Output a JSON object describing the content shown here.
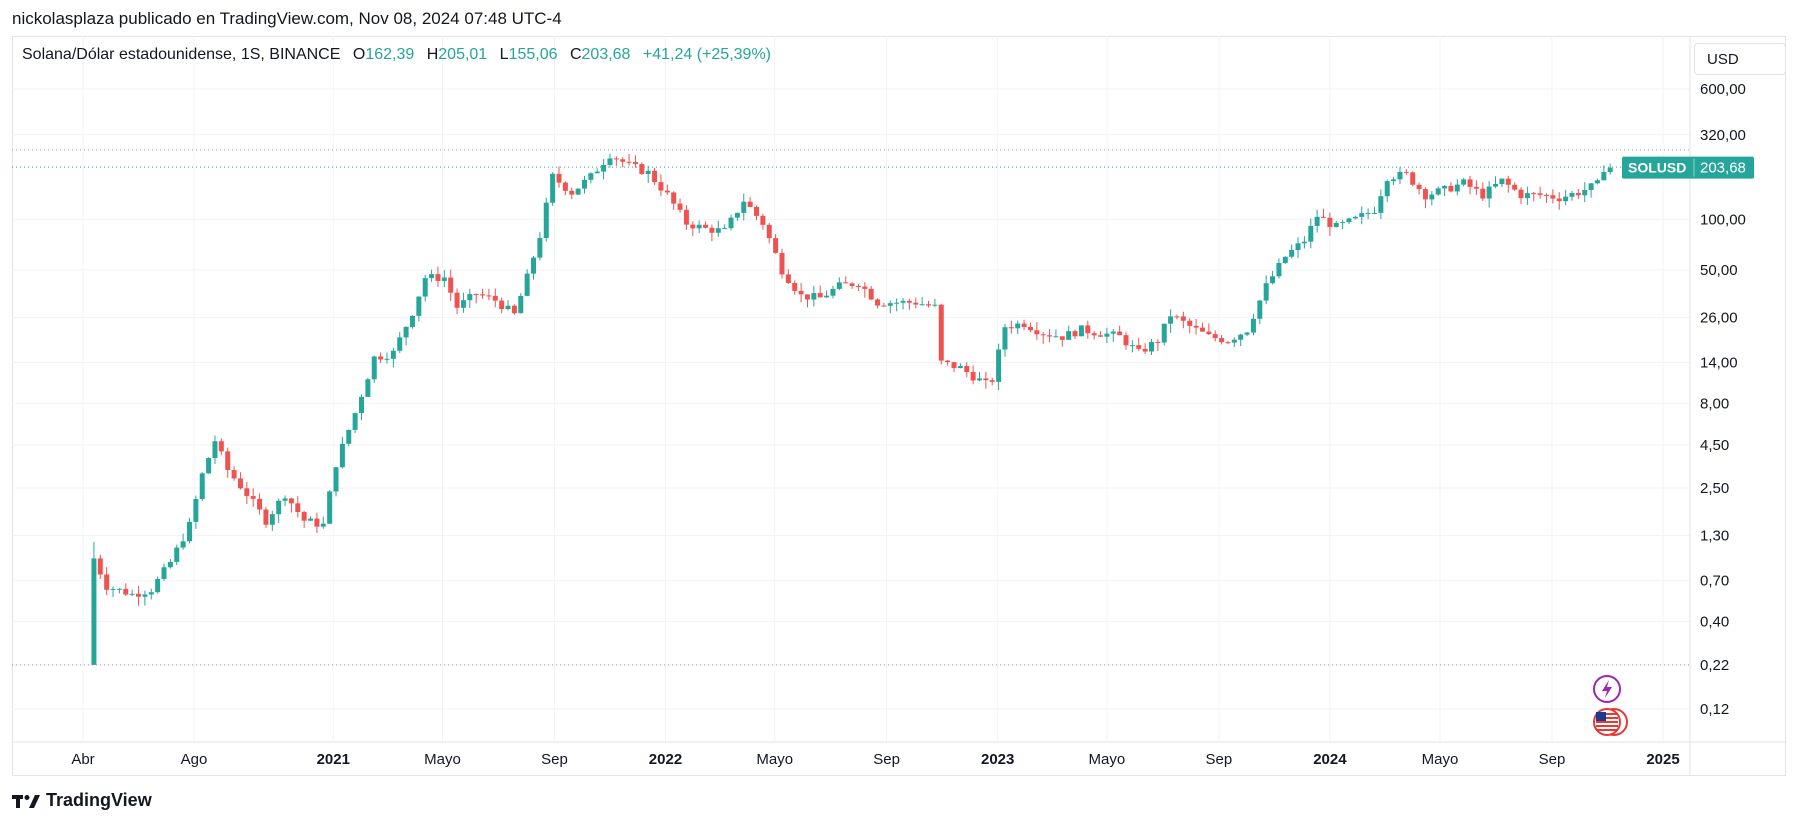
{
  "header": {
    "published_line": "nickolasplaza publicado en TradingView.com, Nov 08, 2024 07:48 UTC-4"
  },
  "legend": {
    "symbol_text": "Solana/Dólar estadounidense, 1S, BINANCE",
    "open_label": "O",
    "open_value": "162,39",
    "high_label": "H",
    "high_value": "205,01",
    "low_label": "L",
    "low_value": "155,06",
    "close_label": "C",
    "close_value": "203,68",
    "change_value": "+41,24 (+25,39%)"
  },
  "currency_button": "USD",
  "price_tag": {
    "symbol": "SOLUSD",
    "price": "203,68",
    "color": "#26a69a"
  },
  "footer": {
    "brand": "TradingView"
  },
  "colors": {
    "up": "#26a69a",
    "down": "#ef5350",
    "grid": "#f0f3fa",
    "dotted": "#9598a1"
  },
  "icons": [
    "lightning-event-icon",
    "us-flag-event-icon"
  ],
  "chart_data": {
    "type": "candlestick",
    "symbol": "SOLUSD",
    "interval": "1S",
    "exchange": "BINANCE",
    "y_scale": "log",
    "y_ticks": [
      0.12,
      0.22,
      0.4,
      0.7,
      1.3,
      2.5,
      4.5,
      8.0,
      14.0,
      26.0,
      50.0,
      100.0,
      320.0,
      600.0
    ],
    "y_tick_labels": [
      "0,12",
      "0,22",
      "0,40",
      "0,70",
      "1,30",
      "2,50",
      "4,50",
      "8,00",
      "14,00",
      "26,00",
      "50,00",
      "100,00",
      "320,00",
      "600,00"
    ],
    "x_ticks": [
      {
        "label": "Abr",
        "date": "2020-04-01",
        "bold": false
      },
      {
        "label": "Ago",
        "date": "2020-08-01",
        "bold": false
      },
      {
        "label": "2021",
        "date": "2021-01-01",
        "bold": true
      },
      {
        "label": "Mayo",
        "date": "2021-05-01",
        "bold": false
      },
      {
        "label": "Sep",
        "date": "2021-09-01",
        "bold": false
      },
      {
        "label": "2022",
        "date": "2022-01-01",
        "bold": true
      },
      {
        "label": "Mayo",
        "date": "2022-05-01",
        "bold": false
      },
      {
        "label": "Sep",
        "date": "2022-09-01",
        "bold": false
      },
      {
        "label": "2023",
        "date": "2023-01-01",
        "bold": true
      },
      {
        "label": "Mayo",
        "date": "2023-05-01",
        "bold": false
      },
      {
        "label": "Sep",
        "date": "2023-09-01",
        "bold": false
      },
      {
        "label": "2024",
        "date": "2024-01-01",
        "bold": true
      },
      {
        "label": "Mayo",
        "date": "2024-05-01",
        "bold": false
      },
      {
        "label": "Sep",
        "date": "2024-09-01",
        "bold": false
      },
      {
        "label": "2025",
        "date": "2025-01-01",
        "bold": true
      }
    ],
    "x_range": [
      "2020-03-01",
      "2025-02-01"
    ],
    "horizontal_lines": [
      0.22,
      260,
      205.01
    ],
    "last_price": 203.68,
    "price_path": [
      [
        "2020-04-13",
        0.22
      ],
      [
        "2020-04-20",
        0.95
      ],
      [
        "2020-05-04",
        0.65
      ],
      [
        "2020-06-01",
        0.58
      ],
      [
        "2020-06-22",
        0.62
      ],
      [
        "2020-07-13",
        0.9
      ],
      [
        "2020-08-03",
        1.5
      ],
      [
        "2020-08-17",
        3.0
      ],
      [
        "2020-08-31",
        4.8
      ],
      [
        "2020-09-14",
        3.2
      ],
      [
        "2020-10-05",
        2.3
      ],
      [
        "2020-10-26",
        1.6
      ],
      [
        "2020-11-16",
        2.3
      ],
      [
        "2020-12-07",
        1.6
      ],
      [
        "2020-12-28",
        1.5
      ],
      [
        "2021-01-11",
        3.5
      ],
      [
        "2021-02-01",
        7.0
      ],
      [
        "2021-02-22",
        15
      ],
      [
        "2021-03-15",
        16
      ],
      [
        "2021-04-05",
        28
      ],
      [
        "2021-04-19",
        45
      ],
      [
        "2021-05-10",
        45
      ],
      [
        "2021-05-24",
        30
      ],
      [
        "2021-06-14",
        36
      ],
      [
        "2021-07-05",
        33
      ],
      [
        "2021-07-26",
        27
      ],
      [
        "2021-08-09",
        45
      ],
      [
        "2021-08-23",
        80
      ],
      [
        "2021-09-06",
        180
      ],
      [
        "2021-09-27",
        145
      ],
      [
        "2021-10-18",
        180
      ],
      [
        "2021-11-08",
        245
      ],
      [
        "2021-11-29",
        210
      ],
      [
        "2021-12-20",
        190
      ],
      [
        "2022-01-10",
        140
      ],
      [
        "2022-01-31",
        95
      ],
      [
        "2022-02-21",
        88
      ],
      [
        "2022-03-14",
        85
      ],
      [
        "2022-04-04",
        130
      ],
      [
        "2022-04-25",
        95
      ],
      [
        "2022-05-16",
        50
      ],
      [
        "2022-06-06",
        35
      ],
      [
        "2022-06-27",
        34
      ],
      [
        "2022-07-18",
        40
      ],
      [
        "2022-08-08",
        42
      ],
      [
        "2022-08-29",
        32
      ],
      [
        "2022-09-19",
        32
      ],
      [
        "2022-10-10",
        32
      ],
      [
        "2022-10-31",
        30
      ],
      [
        "2022-11-07",
        14
      ],
      [
        "2022-11-28",
        13
      ],
      [
        "2022-12-19",
        11
      ],
      [
        "2022-12-31",
        10
      ],
      [
        "2023-01-16",
        23
      ],
      [
        "2023-02-06",
        24
      ],
      [
        "2023-02-27",
        21
      ],
      [
        "2023-03-20",
        20
      ],
      [
        "2023-04-10",
        22
      ],
      [
        "2023-05-01",
        21
      ],
      [
        "2023-05-22",
        20
      ],
      [
        "2023-06-12",
        16
      ],
      [
        "2023-07-03",
        19
      ],
      [
        "2023-07-17",
        27
      ],
      [
        "2023-08-07",
        23
      ],
      [
        "2023-08-28",
        20
      ],
      [
        "2023-09-18",
        19
      ],
      [
        "2023-10-09",
        22
      ],
      [
        "2023-10-30",
        40
      ],
      [
        "2023-11-20",
        60
      ],
      [
        "2023-12-11",
        75
      ],
      [
        "2023-12-25",
        105
      ],
      [
        "2024-01-15",
        90
      ],
      [
        "2024-02-05",
        100
      ],
      [
        "2024-02-26",
        115
      ],
      [
        "2024-03-11",
        180
      ],
      [
        "2024-04-01",
        185
      ],
      [
        "2024-04-22",
        140
      ],
      [
        "2024-05-13",
        150
      ],
      [
        "2024-06-03",
        165
      ],
      [
        "2024-06-24",
        140
      ],
      [
        "2024-07-15",
        170
      ],
      [
        "2024-08-05",
        140
      ],
      [
        "2024-08-26",
        140
      ],
      [
        "2024-09-16",
        135
      ],
      [
        "2024-10-07",
        145
      ],
      [
        "2024-10-28",
        162
      ],
      [
        "2024-11-04",
        203.68
      ]
    ]
  }
}
